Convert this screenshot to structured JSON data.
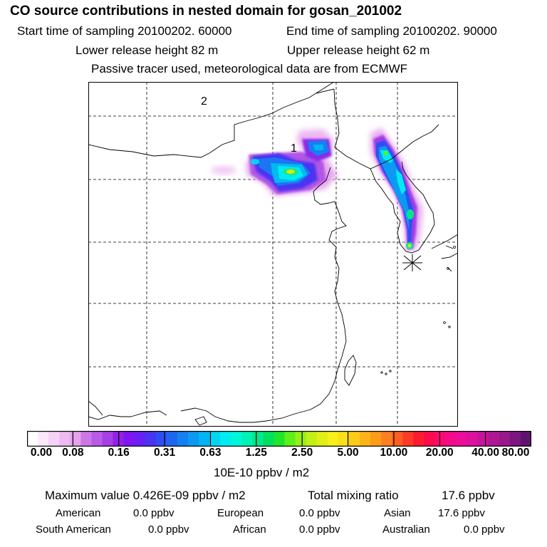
{
  "header": {
    "title": "CO  source contributions in nested domain for gosan_201002",
    "start_label": "Start time of sampling 20100202. 60000",
    "end_label": "End time of sampling 20100202. 90000",
    "lower_label": "Lower release height   82 m",
    "upper_label": "Upper release height   62 m",
    "tracer_note": "Passive tracer used, meteorological data are from ECMWF"
  },
  "map": {
    "region_labels": {
      "one": "1",
      "two": "2"
    }
  },
  "colorbar": {
    "unit": "10E-10 ppbv / m2",
    "tick_labels": [
      "0.00",
      "0.08",
      "0.16",
      "0.31",
      "0.63",
      "1.25",
      "2.50",
      "5.00",
      "10.00",
      "20.00",
      "40.00",
      "80.00"
    ],
    "colors": [
      "#ffffff",
      "#fbe8fb",
      "#f6d2f7",
      "#eebbf1",
      "#e6a3ec",
      "#cc77e8",
      "#b95be7",
      "#a63fe7",
      "#9420e6",
      "#7e16f0",
      "#6a20f5",
      "#4a35f3",
      "#2f4ff2",
      "#1e66f2",
      "#1480f2",
      "#0b9af2",
      "#04b3f2",
      "#00d6f3",
      "#00ecf0",
      "#00f6d8",
      "#00f2b4",
      "#00e88b",
      "#00e060",
      "#1ee62c",
      "#5ef01c",
      "#96f018",
      "#c2f018",
      "#e0ef18",
      "#f6f018",
      "#fde018",
      "#fdcb18",
      "#fdb318",
      "#fd9a18",
      "#fd8020",
      "#fd5e22",
      "#fd3b26",
      "#fd1b2e",
      "#fd0a4c",
      "#fb0a6e",
      "#f40b8a",
      "#ea0e9a",
      "#dc129e",
      "#c8149c",
      "#b01694",
      "#98188a",
      "#7c1680",
      "#601270"
    ]
  },
  "summary": {
    "max_label": "Maximum value  0.426E-09 ppbv / m2",
    "total_label": "Total mixing ratio",
    "total_value": "17.6 ppbv",
    "american_label": "American",
    "american_value": "0.0 ppbv",
    "european_label": "European",
    "european_value": "0.0 ppbv",
    "asian_label": "Asian",
    "asian_value": "17.6 ppbv",
    "south_american_label": "South American",
    "south_american_value": "0.0 ppbv",
    "african_label": "African",
    "african_value": "0.0 ppbv",
    "australian_label": "Australian",
    "australian_value": "0.0 ppbv"
  }
}
